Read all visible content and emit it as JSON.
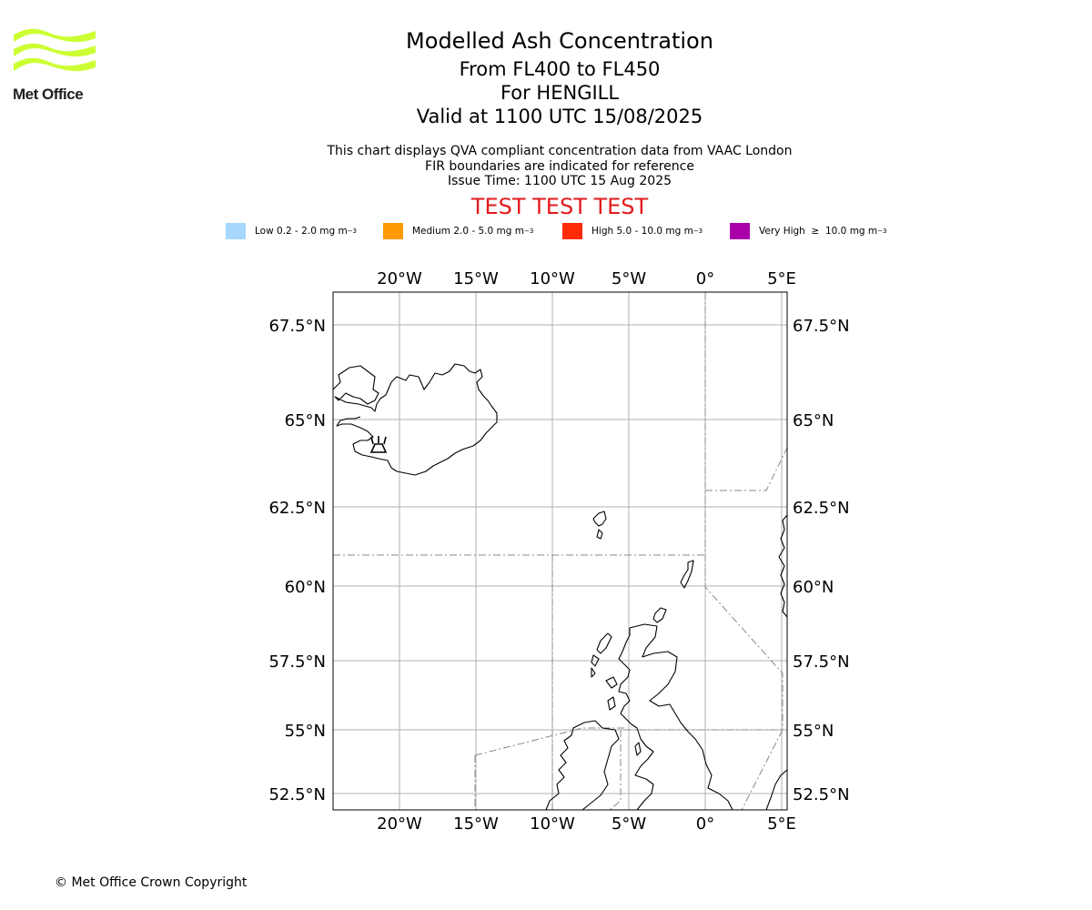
{
  "logo": {
    "text": "Met Office",
    "colors": {
      "waves": "#ccff33",
      "text": "#1f1f1f"
    }
  },
  "header": {
    "title": "Modelled Ash Concentration",
    "level_range": "From FL400 to FL450",
    "volcano": "For HENGILL",
    "valid_time": "Valid at 1100 UTC 15/08/2025"
  },
  "subtitle": {
    "line1": "This chart displays QVA compliant concentration data from VAAC London",
    "line2": "FIR boundaries are indicated for reference",
    "line3": "Issue Time: 1100 UTC 15 Aug 2025"
  },
  "test_banner": "TEST TEST TEST",
  "legend": [
    {
      "label": "Low 0.2 - 2.0 mg m",
      "sup": "−3",
      "color": "#a6d8fe"
    },
    {
      "label": "Medium 2.0 - 5.0 mg m",
      "sup": "−3",
      "color": "#ff9a06"
    },
    {
      "label": "High 5.0 - 10.0 mg m",
      "sup": "−3",
      "color": "#ff2a06"
    },
    {
      "label": "Very High  ≥  10.0 mg m",
      "sup": "−3",
      "color": "#aa00aa"
    }
  ],
  "map": {
    "lon_ticks": [
      "20°W",
      "15°W",
      "10°W",
      "5°W",
      "0°",
      "5°E"
    ],
    "lat_ticks": [
      "67.5°N",
      "65°N",
      "62.5°N",
      "60°N",
      "57.5°N",
      "55°N",
      "52.5°N"
    ],
    "lon_values": [
      -20,
      -15,
      -10,
      -5,
      0,
      5
    ],
    "lat_values": [
      67.5,
      65,
      62.5,
      60,
      57.5,
      55,
      52.5
    ],
    "volcano_symbol": "volcano-icon",
    "colors": {
      "grid": "#b0b0b0",
      "coast": "#000000",
      "fir": "#888888"
    }
  },
  "footer": {
    "copyright": "© Met Office Crown Copyright"
  }
}
